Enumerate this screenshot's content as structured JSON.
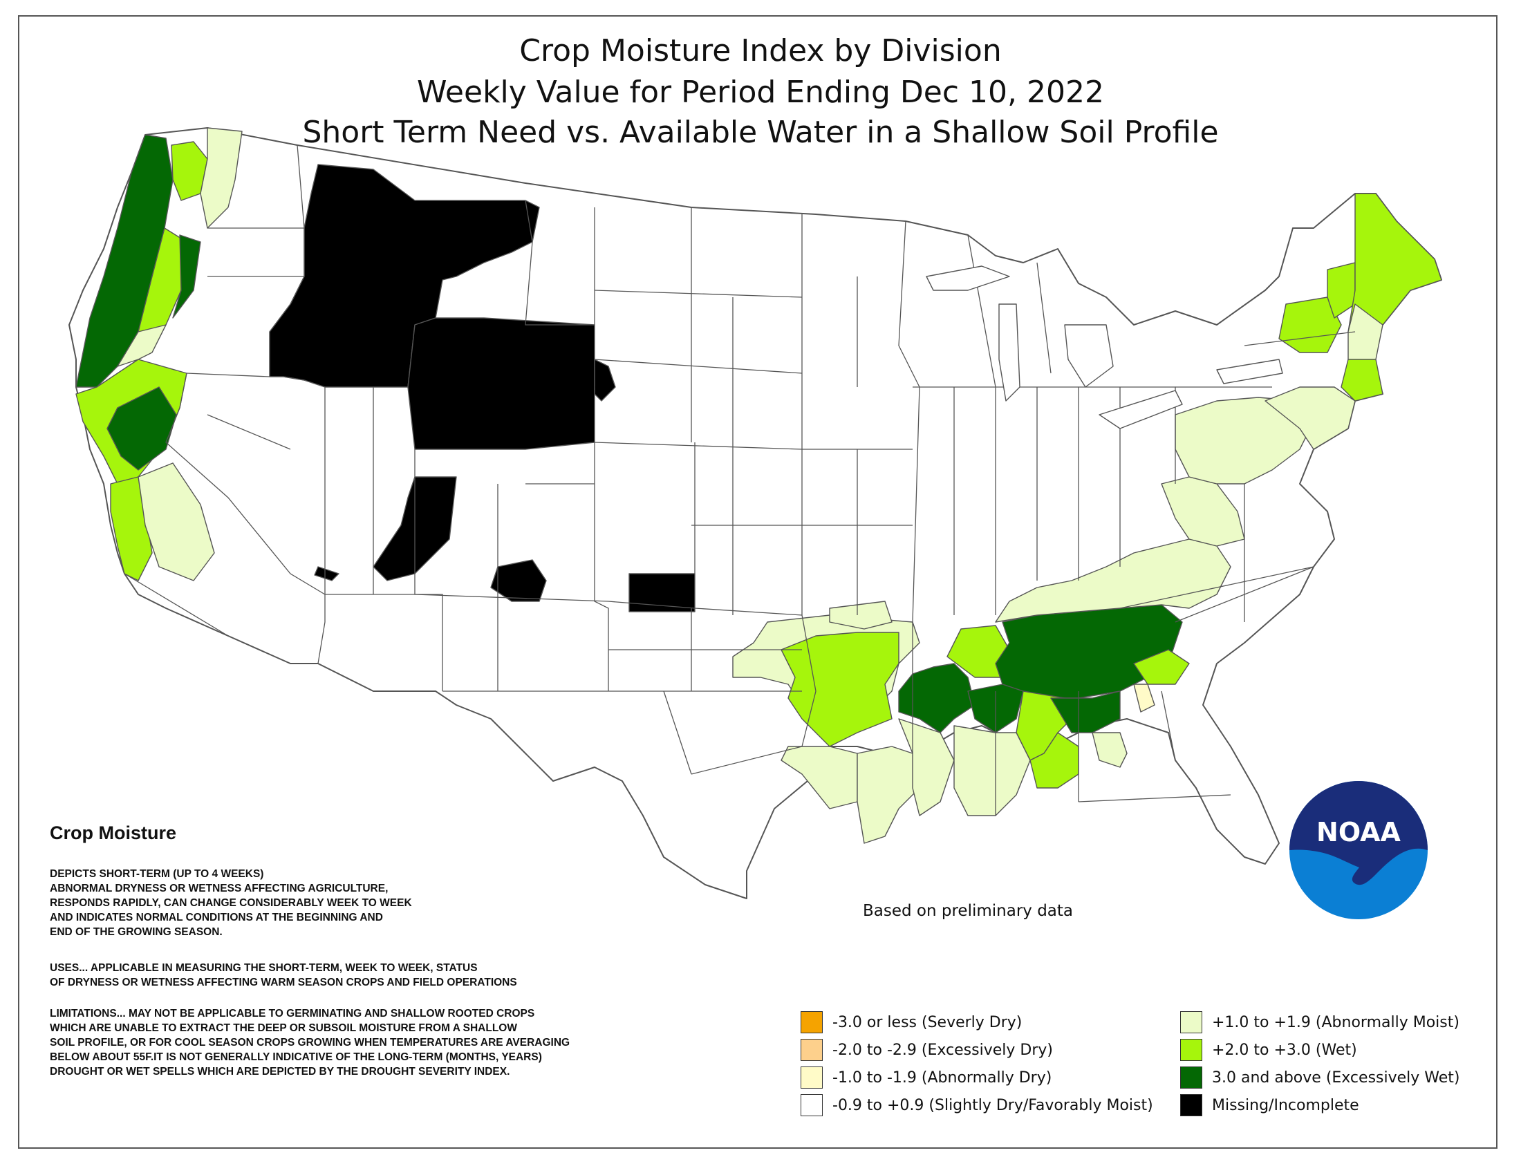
{
  "title": {
    "line1": "Crop Moisture Index by Division",
    "line2": "Weekly Value for Period Ending Dec 10, 2022",
    "line3": "Short Term Need vs. Available Water in a Shallow Soil Profile"
  },
  "description": {
    "heading": "Crop Moisture",
    "depicts": "DEPICTS SHORT-TERM (UP TO 4 WEEKS)\nABNORMAL DRYNESS OR WETNESS AFFECTING AGRICULTURE,\nRESPONDS RAPIDLY, CAN CHANGE CONSIDERABLY WEEK TO WEEK\nAND INDICATES NORMAL CONDITIONS AT THE BEGINNING AND\nEND OF THE GROWING SEASON.",
    "uses": "USES... APPLICABLE IN MEASURING THE SHORT-TERM, WEEK TO WEEK, STATUS\nOF DRYNESS OR WETNESS AFFECTING WARM SEASON CROPS AND FIELD OPERATIONS",
    "limitations": "LIMITATIONS... MAY NOT BE APPLICABLE TO GERMINATING AND SHALLOW ROOTED CROPS\nWHICH ARE UNABLE TO EXTRACT THE DEEP OR SUBSOIL MOISTURE FROM A SHALLOW\nSOIL PROFILE, OR FOR COOL SEASON CROPS GROWING WHEN TEMPERATURES ARE AVERAGING\nBELOW ABOUT 55F.IT IS NOT GENERALLY INDICATIVE OF THE LONG-TERM (MONTHS, YEARS)\nDROUGHT OR WET SPELLS WHICH ARE DEPICTED BY THE DROUGHT SEVERITY INDEX."
  },
  "note": "Based on preliminary data",
  "legend": [
    {
      "label": "-3.0 or less (Severly Dry)",
      "color": "#f5a300"
    },
    {
      "label": "-2.0 to -2.9 (Excessively Dry)",
      "color": "#fdd08c"
    },
    {
      "label": "-1.0 to -1.9 (Abnormally Dry)",
      "color": "#fffbc8"
    },
    {
      "label": "-0.9 to +0.9 (Slightly Dry/Favorably Moist)",
      "color": "#ffffff"
    },
    {
      "label": "+1.0 to +1.9 (Abnormally Moist)",
      "color": "#ecfbc8"
    },
    {
      "label": "+2.0 to +3.0 (Wet)",
      "color": "#a6f50c"
    },
    {
      "label": "3.0 and above (Excessively Wet)",
      "color": "#046804"
    },
    {
      "label": "Missing/Incomplete",
      "color": "#000000"
    }
  ],
  "logo": {
    "text": "NOAA",
    "colors": {
      "navy": "#1a2d7a",
      "blue": "#0b7fd4"
    }
  },
  "map_colors": {
    "normal": "#ffffff",
    "abnormally_moist": "#ecfbc8",
    "wet": "#a6f50c",
    "excessively_wet": "#046804",
    "abnormally_dry": "#fffbc8",
    "missing": "#000000",
    "border": "#555555"
  }
}
